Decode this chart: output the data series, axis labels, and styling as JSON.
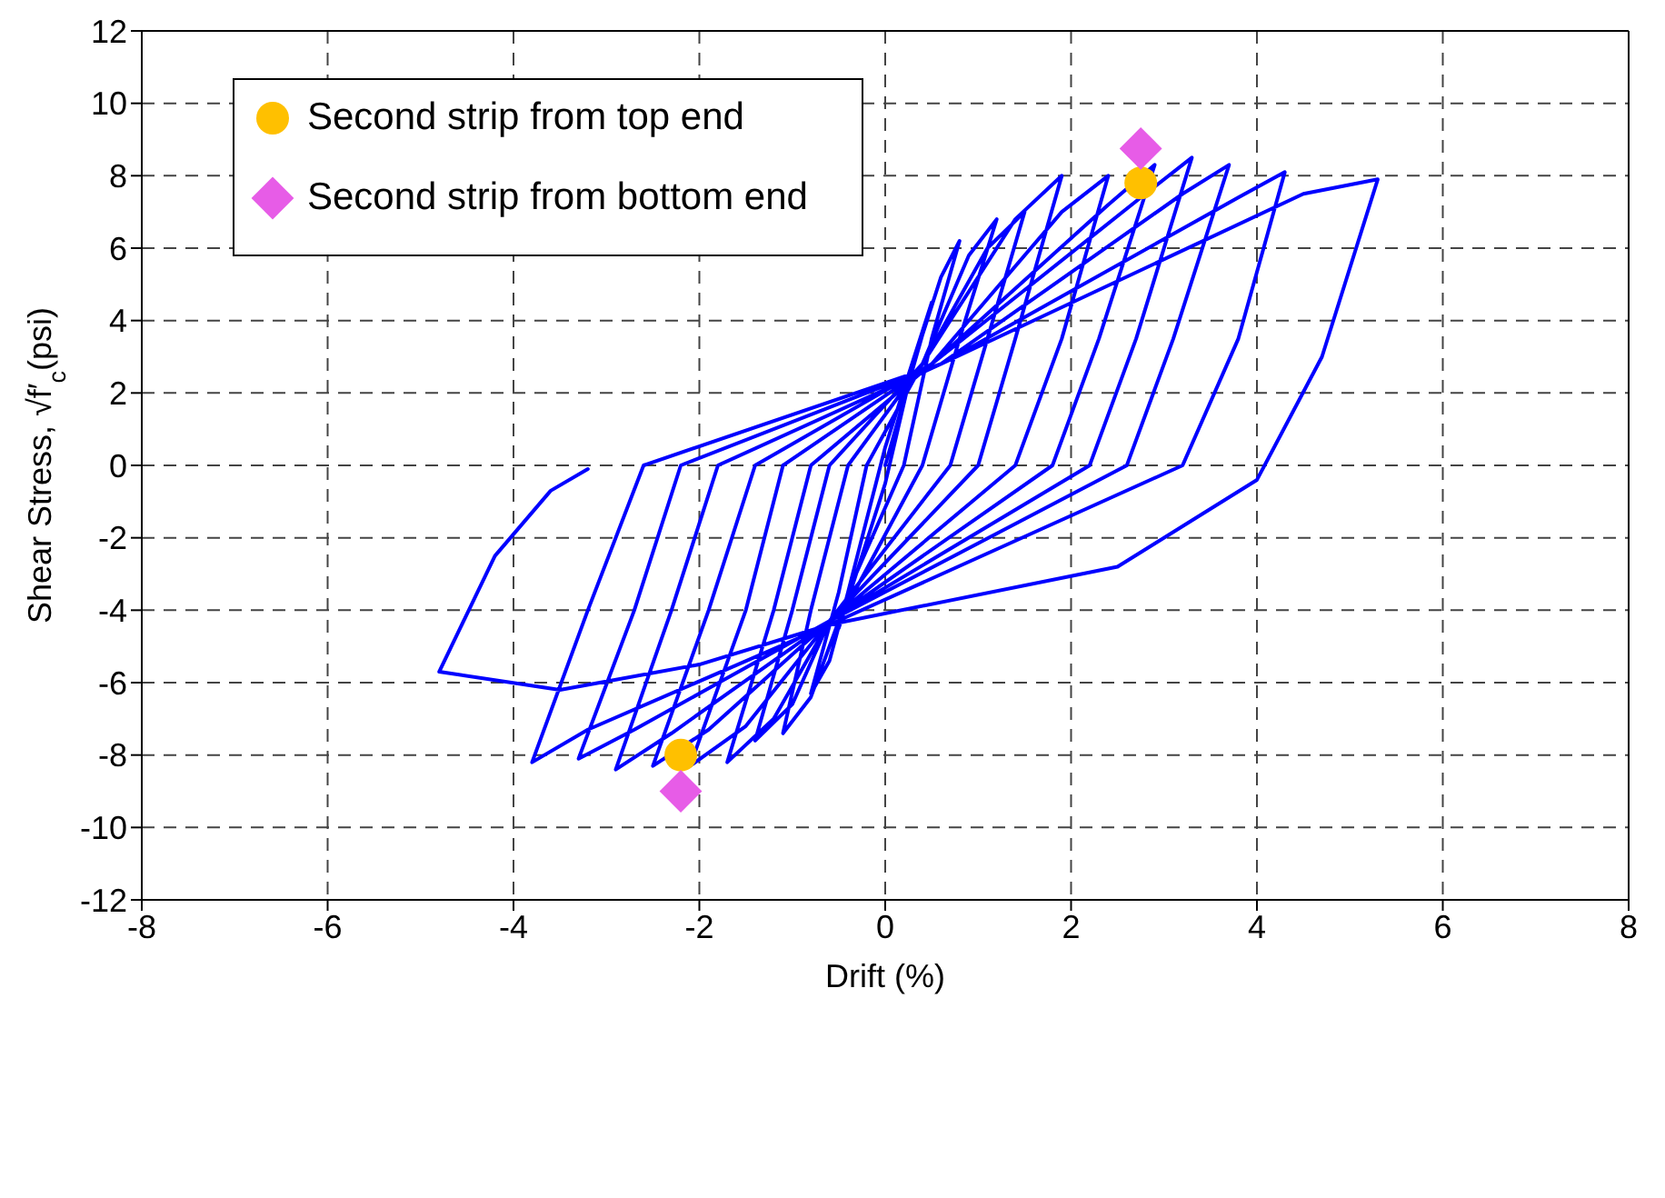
{
  "chart_data": {
    "type": "line",
    "xlabel": "Drift (%)",
    "ylabel": "Shear Stress, √f′$_{c}$(psi)",
    "xlim": [
      -8,
      8
    ],
    "xticks": [
      -8,
      -6,
      -4,
      -2,
      0,
      2,
      4,
      6,
      8
    ],
    "ylim": [
      -12,
      12
    ],
    "yticks": [
      -12,
      -10,
      -8,
      -6,
      -4,
      -2,
      0,
      2,
      4,
      6,
      8,
      10,
      12
    ],
    "grid": true,
    "legend": "top left",
    "line_style": "solid",
    "series": [
      {
        "color": "#0000ff",
        "marker": "none",
        "x": [
          0,
          0.5,
          0,
          -0.5,
          0,
          0.3,
          0.6,
          0.8,
          0.5,
          0.2,
          -0.4,
          -0.6,
          -0.8,
          -0.5,
          -0.2,
          0.4,
          0.9,
          1.2,
          0.8,
          0.4,
          -0.5,
          -0.8,
          -1.1,
          -0.8,
          -0.4,
          0.4,
          1.1,
          1.5,
          1.1,
          0.7,
          -0.6,
          -1.0,
          -1.4,
          -1.0,
          -0.6,
          0.4,
          1.4,
          1.9,
          1.4,
          1.0,
          -0.6,
          -1.2,
          -1.7,
          -1.2,
          -0.8,
          0.5,
          1.9,
          2.4,
          1.9,
          1.4,
          -0.6,
          -1.5,
          -2.1,
          -1.5,
          -1.1,
          0.5,
          2.4,
          2.9,
          2.3,
          1.8,
          -0.6,
          -1.9,
          -2.5,
          -1.9,
          -1.4,
          0.5,
          2.8,
          3.3,
          2.7,
          2.2,
          -0.6,
          -2.3,
          -2.9,
          -2.3,
          -1.8,
          0.6,
          3.2,
          3.7,
          3.1,
          2.6,
          -0.6,
          -2.7,
          -3.3,
          -2.7,
          -2.2,
          0.6,
          3.8,
          4.3,
          3.8,
          3.2,
          -0.6,
          -3.2,
          -3.8,
          -3.2,
          -2.6,
          0.6,
          4.5,
          5.3,
          4.7,
          4.0,
          2.5,
          -0.6,
          -2,
          -3.5,
          -4.8,
          -4.2,
          -3.6,
          -3.2
        ],
        "values": [
          0,
          4.5,
          0.5,
          -4.5,
          -0.5,
          2.8,
          5.2,
          6.2,
          3.5,
          0,
          -3.5,
          -5.4,
          -6.3,
          -3.5,
          0,
          2.8,
          5.8,
          6.8,
          3.5,
          0,
          -4.3,
          -6.4,
          -7.4,
          -4,
          0,
          2.8,
          6.0,
          7.0,
          3.5,
          0,
          -4.3,
          -6.6,
          -7.6,
          -4,
          0,
          2.8,
          6.8,
          8.0,
          3.5,
          0,
          -4.3,
          -7.0,
          -8.2,
          -4,
          0,
          2.8,
          7.0,
          8.0,
          3.5,
          0,
          -4.3,
          -7.2,
          -8.3,
          -4,
          0,
          2.8,
          7.2,
          8.3,
          3.5,
          0,
          -4.3,
          -7.3,
          -8.3,
          -4,
          0,
          2.8,
          7.5,
          8.5,
          3.5,
          0,
          -4.3,
          -7.4,
          -8.4,
          -4,
          0,
          2.8,
          7.5,
          8.3,
          3.5,
          0,
          -4.3,
          -7.3,
          -8.1,
          -4,
          0,
          2.8,
          7.4,
          8.1,
          3.5,
          0,
          -4.4,
          -7.3,
          -8.2,
          -4,
          0,
          2.8,
          7.5,
          7.9,
          3,
          -0.4,
          -2.8,
          -4.4,
          -5.5,
          -6.2,
          -5.7,
          -2.5,
          -0.7,
          -0.1
        ]
      },
      {
        "type": "scatter",
        "name": "Second strip from top end",
        "color": "#ffc000",
        "marker": "circle",
        "x": [
          2.75,
          -2.2
        ],
        "values": [
          7.8,
          -8.0
        ]
      },
      {
        "type": "scatter",
        "name": "Second strip from bottom end",
        "color": "#e75ce7",
        "marker": "diamond",
        "x": [
          2.75,
          -2.2
        ],
        "values": [
          8.75,
          -9.0
        ]
      }
    ]
  }
}
